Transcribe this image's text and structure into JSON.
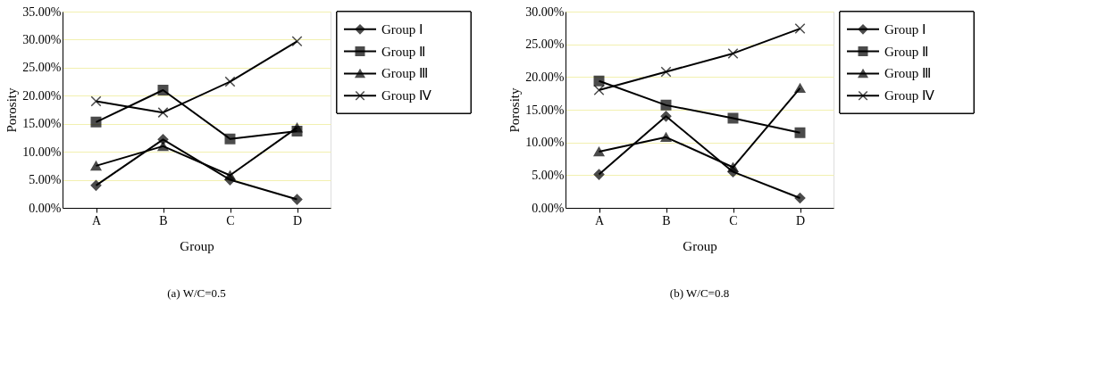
{
  "chart_data": [
    {
      "type": "line",
      "categories": [
        "A",
        "B",
        "C",
        "D"
      ],
      "xlabel": "Group",
      "ylabel": "Porosity",
      "ylim": [
        0,
        35
      ],
      "yticks": [
        {
          "value": 0,
          "label": "0.00%"
        },
        {
          "value": 5,
          "label": "5.00%"
        },
        {
          "value": 10,
          "label": "10.00%"
        },
        {
          "value": 15,
          "label": "15.00%"
        },
        {
          "value": 20,
          "label": "20.00%"
        },
        {
          "value": 25,
          "label": "25.00%"
        },
        {
          "value": 30,
          "label": "30.00%"
        },
        {
          "value": 35,
          "label": "35.00%"
        }
      ],
      "grid": "y",
      "legend": "right",
      "line_style": "solid",
      "annotations": [
        "(a) W/C=0.5"
      ],
      "series": [
        {
          "name": "Group Ⅰ",
          "color": "#000000",
          "marker": "diamond",
          "values": [
            4.0,
            12.2,
            5.0,
            1.5
          ]
        },
        {
          "name": "Group Ⅱ",
          "color": "#000000",
          "marker": "square",
          "values": [
            15.3,
            21.0,
            12.3,
            13.7
          ]
        },
        {
          "name": "Group Ⅲ",
          "color": "#000000",
          "marker": "triangle",
          "values": [
            7.5,
            11.0,
            5.8,
            14.3
          ]
        },
        {
          "name": "Group Ⅳ",
          "color": "#000000",
          "marker": "cross",
          "values": [
            19.0,
            17.0,
            22.5,
            29.7
          ]
        }
      ]
    },
    {
      "type": "line",
      "categories": [
        "A",
        "B",
        "C",
        "D"
      ],
      "xlabel": "Group",
      "ylabel": "Porosity",
      "ylim": [
        0,
        30
      ],
      "yticks": [
        {
          "value": 0,
          "label": "0.00%"
        },
        {
          "value": 5,
          "label": "5.00%"
        },
        {
          "value": 10,
          "label": "10.00%"
        },
        {
          "value": 15,
          "label": "15.00%"
        },
        {
          "value": 20,
          "label": "20.00%"
        },
        {
          "value": 25,
          "label": "25.00%"
        },
        {
          "value": 30,
          "label": "30.00%"
        }
      ],
      "grid": "y",
      "legend": "right",
      "line_style": "solid",
      "annotations": [
        "(b) W/C=0.8"
      ],
      "series": [
        {
          "name": "Group Ⅰ",
          "color": "#000000",
          "marker": "diamond",
          "values": [
            5.1,
            14.0,
            5.5,
            1.5
          ]
        },
        {
          "name": "Group Ⅱ",
          "color": "#000000",
          "marker": "square",
          "values": [
            19.4,
            15.7,
            13.7,
            11.5
          ]
        },
        {
          "name": "Group Ⅲ",
          "color": "#000000",
          "marker": "triangle",
          "values": [
            8.6,
            10.8,
            6.2,
            18.3
          ]
        },
        {
          "name": "Group Ⅳ",
          "color": "#000000",
          "marker": "cross",
          "values": [
            18.0,
            20.8,
            23.6,
            27.4
          ]
        }
      ]
    }
  ]
}
